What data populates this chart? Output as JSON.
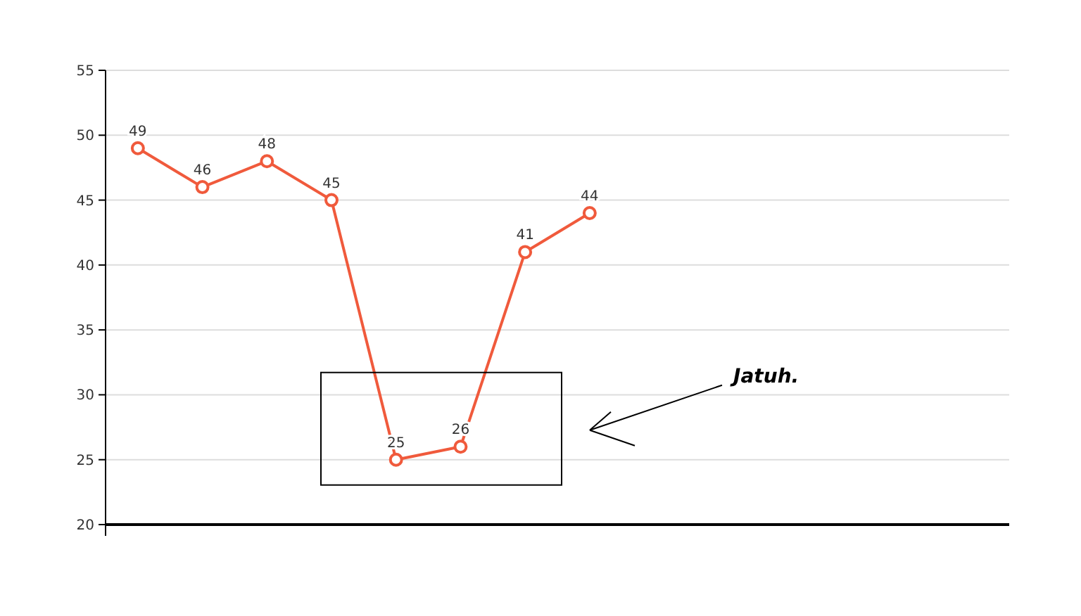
{
  "chart_data": {
    "type": "line",
    "categories": [
      null,
      null,
      null,
      null,
      null,
      null,
      null,
      null,
      null,
      null,
      null,
      null,
      null,
      null
    ],
    "series": [
      {
        "color": "#f05a3c",
        "values": [
          49,
          46,
          48,
          45,
          25,
          26,
          41,
          44,
          null,
          null,
          null,
          null,
          null,
          null
        ]
      }
    ],
    "ylim": [
      20,
      55
    ],
    "yticks": [
      20,
      25,
      30,
      35,
      40,
      45,
      50,
      55
    ],
    "grid": "y",
    "marker": "circle",
    "line_style": "solid",
    "data_labels": true,
    "annotations": [
      "Jatuh."
    ]
  }
}
